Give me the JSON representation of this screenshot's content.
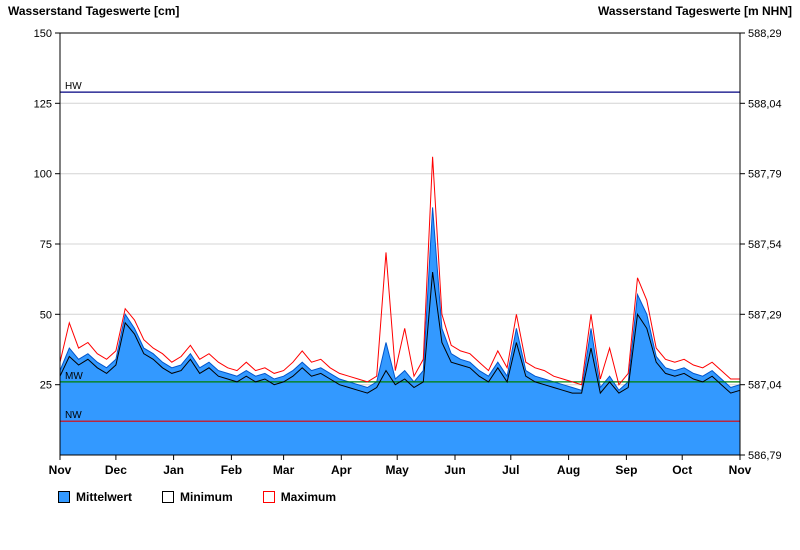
{
  "chart_data": {
    "type": "area",
    "title": "Wasserstand Tageswerte",
    "x_unit": "day-of-year starting Nov 1",
    "x": [
      0,
      5,
      10,
      15,
      20,
      25,
      30,
      35,
      40,
      45,
      50,
      55,
      60,
      65,
      70,
      75,
      80,
      85,
      90,
      95,
      100,
      105,
      110,
      115,
      120,
      125,
      130,
      135,
      140,
      145,
      150,
      155,
      160,
      165,
      170,
      175,
      180,
      185,
      190,
      195,
      200,
      205,
      210,
      215,
      220,
      225,
      230,
      235,
      240,
      245,
      250,
      255,
      260,
      265,
      270,
      275,
      280,
      285,
      290,
      295,
      300,
      305,
      310,
      315,
      320,
      325,
      330,
      335,
      340,
      345,
      350,
      355,
      360,
      365
    ],
    "series": [
      {
        "name": "Mittelwert",
        "color": "#3399FF",
        "stroke": "#0055CC",
        "values": [
          30,
          38,
          34,
          36,
          33,
          31,
          34,
          50,
          45,
          38,
          36,
          33,
          31,
          32,
          36,
          31,
          33,
          30,
          29,
          28,
          30,
          28,
          29,
          27,
          28,
          30,
          33,
          30,
          31,
          29,
          27,
          26,
          25,
          24,
          26,
          40,
          27,
          30,
          26,
          30,
          88,
          45,
          36,
          34,
          33,
          30,
          28,
          33,
          28,
          45,
          30,
          28,
          27,
          26,
          25,
          24,
          23,
          45,
          24,
          28,
          23,
          26,
          57,
          50,
          35,
          31,
          30,
          31,
          29,
          28,
          30,
          27,
          24,
          25
        ]
      },
      {
        "name": "Minimum",
        "color": "#000000",
        "values": [
          28,
          35,
          32,
          34,
          31,
          29,
          32,
          47,
          43,
          36,
          34,
          31,
          29,
          30,
          34,
          29,
          31,
          28,
          27,
          26,
          28,
          26,
          27,
          25,
          26,
          28,
          31,
          28,
          29,
          27,
          25,
          24,
          23,
          22,
          24,
          30,
          25,
          27,
          24,
          26,
          65,
          40,
          33,
          32,
          31,
          28,
          26,
          31,
          26,
          40,
          28,
          26,
          25,
          24,
          23,
          22,
          22,
          38,
          22,
          26,
          22,
          24,
          50,
          45,
          33,
          29,
          28,
          29,
          27,
          26,
          28,
          25,
          22,
          23
        ]
      },
      {
        "name": "Maximum",
        "color": "#FF0000",
        "values": [
          33,
          47,
          38,
          40,
          36,
          34,
          37,
          52,
          48,
          41,
          38,
          36,
          33,
          35,
          39,
          34,
          36,
          33,
          31,
          30,
          33,
          30,
          31,
          29,
          30,
          33,
          37,
          33,
          34,
          31,
          29,
          28,
          27,
          26,
          28,
          72,
          30,
          45,
          28,
          34,
          106,
          50,
          39,
          37,
          36,
          33,
          30,
          37,
          31,
          50,
          33,
          31,
          30,
          28,
          27,
          26,
          25,
          50,
          27,
          38,
          25,
          29,
          63,
          55,
          38,
          34,
          33,
          34,
          32,
          31,
          33,
          30,
          27,
          27
        ]
      }
    ],
    "x_ticks": [
      {
        "day": 0,
        "label": "Nov"
      },
      {
        "day": 30,
        "label": "Dec"
      },
      {
        "day": 61,
        "label": "Jan"
      },
      {
        "day": 92,
        "label": "Feb"
      },
      {
        "day": 120,
        "label": "Mar"
      },
      {
        "day": 151,
        "label": "Apr"
      },
      {
        "day": 181,
        "label": "May"
      },
      {
        "day": 212,
        "label": "Jun"
      },
      {
        "day": 242,
        "label": "Jul"
      },
      {
        "day": 273,
        "label": "Aug"
      },
      {
        "day": 304,
        "label": "Sep"
      },
      {
        "day": 334,
        "label": "Oct"
      },
      {
        "day": 365,
        "label": "Nov"
      }
    ],
    "left_axis": {
      "label": "Wasserstand Tageswerte [cm]",
      "min": 0,
      "max": 150,
      "ticks": [
        25,
        50,
        75,
        100,
        125,
        150
      ],
      "gridlines": [
        25,
        50,
        75,
        100,
        125
      ]
    },
    "right_axis": {
      "label": "Wasserstand Tageswerte [m NHN]",
      "min": 586.79,
      "max": 588.29,
      "ticks": [
        {
          "cm": 0,
          "label": "586,79"
        },
        {
          "cm": 25,
          "label": "587,04"
        },
        {
          "cm": 50,
          "label": "587,29"
        },
        {
          "cm": 75,
          "label": "587,54"
        },
        {
          "cm": 100,
          "label": "587,79"
        },
        {
          "cm": 125,
          "label": "588,04"
        },
        {
          "cm": 150,
          "label": "588,29"
        }
      ]
    },
    "reference_lines": [
      {
        "name": "HW",
        "value": 129,
        "color": "#000080"
      },
      {
        "name": "MW",
        "value": 26,
        "color": "#008000"
      },
      {
        "name": "NW",
        "value": 12,
        "color": "#E60000"
      }
    ],
    "legend": [
      {
        "label": "Mittelwert",
        "fill": "#3399FF",
        "border": "#000000"
      },
      {
        "label": "Minimum",
        "fill": "#FFFFFF",
        "border": "#000000"
      },
      {
        "label": "Maximum",
        "fill": "#FFFFFF",
        "border": "#FF0000"
      }
    ],
    "grid": "horizontal only",
    "legend_position": "bottom-left"
  }
}
